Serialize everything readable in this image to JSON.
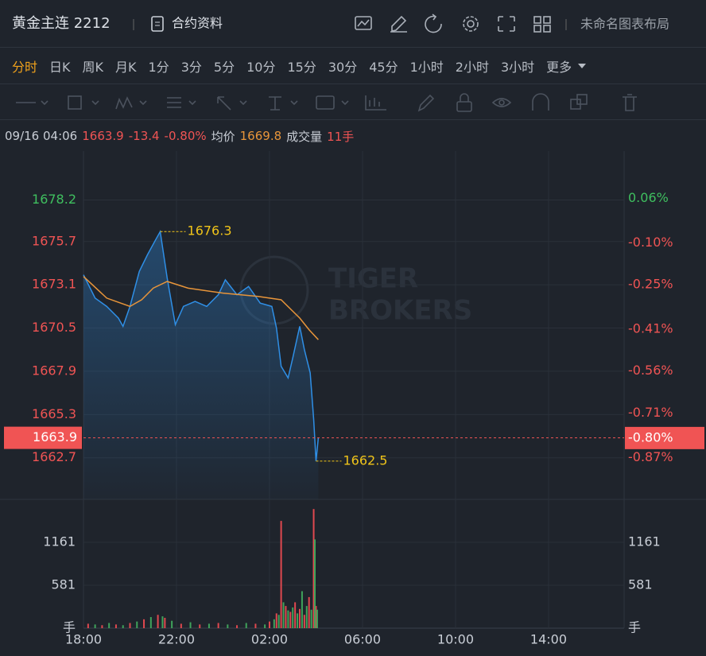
{
  "header": {
    "title": "黄金主连 2212",
    "contract_info": "合约资料",
    "layout_name": "未命名图表布局"
  },
  "periods": {
    "items": [
      "分时",
      "日K",
      "周K",
      "月K",
      "1分",
      "3分",
      "5分",
      "10分",
      "15分",
      "30分",
      "45分",
      "1小时",
      "2小时",
      "3小时",
      "更多"
    ],
    "active": 0
  },
  "info": {
    "time": "09/16 04:06",
    "price": "1663.9",
    "change": "-13.4",
    "change_pct": "-0.80%",
    "avg_label": "均价",
    "avg": "1669.8",
    "volume_label": "成交量",
    "volume": "11手"
  },
  "watermark": [
    "TIGER",
    "BROKERS"
  ],
  "chart_data": {
    "type": "line",
    "xlim": [
      0,
      23.25
    ],
    "xticks": [
      {
        "value": 0,
        "label": "18:00"
      },
      {
        "value": 4,
        "label": "22:00"
      },
      {
        "value": 8,
        "label": "02:00"
      },
      {
        "value": 12,
        "label": "06:00"
      },
      {
        "value": 16,
        "label": "10:00"
      },
      {
        "value": 20,
        "label": "14:00"
      }
    ],
    "ylim": [
      1660.2,
      1680.9
    ],
    "yticks": [
      1678.2,
      1675.7,
      1673.1,
      1670.5,
      1667.9,
      1665.3,
      1662.7
    ],
    "y2lim": [
      -1.02,
      0.215
    ],
    "y2ticks": [
      {
        "value": 0.06,
        "label": "0.06%"
      },
      {
        "value": -0.1,
        "label": "-0.10%"
      },
      {
        "value": -0.25,
        "label": "-0.25%"
      },
      {
        "value": -0.41,
        "label": "-0.41%"
      },
      {
        "value": -0.56,
        "label": "-0.56%"
      },
      {
        "value": -0.71,
        "label": "-0.71%"
      },
      {
        "value": -0.87,
        "label": "-0.87%"
      }
    ],
    "series": [
      {
        "color": "#2f8fe6",
        "x": [
          0,
          0.5,
          1.0,
          1.5,
          1.7,
          2.0,
          2.4,
          2.75,
          3.1,
          3.3,
          3.6,
          3.95,
          4.3,
          4.8,
          5.3,
          5.8,
          6.1,
          6.6,
          7.1,
          7.6,
          8.1,
          8.3,
          8.5,
          8.8,
          9.0,
          9.3,
          9.5,
          9.75,
          9.9,
          10.0,
          10.1
        ],
        "values": [
          1673.7,
          1672.3,
          1671.8,
          1671.1,
          1670.6,
          1671.8,
          1673.9,
          1674.9,
          1675.8,
          1676.3,
          1673.5,
          1670.7,
          1671.8,
          1672.1,
          1671.8,
          1672.5,
          1673.4,
          1672.5,
          1673.0,
          1672.0,
          1671.8,
          1670.5,
          1668.2,
          1667.5,
          1668.7,
          1670.6,
          1669.2,
          1667.8,
          1665.0,
          1662.5,
          1663.9
        ]
      },
      {
        "color": "#e8953a",
        "x": [
          0,
          1,
          2,
          2.5,
          3,
          3.6,
          4.5,
          6,
          7.5,
          8.5,
          9.3,
          9.7,
          10.1
        ],
        "values": [
          1673.6,
          1672.3,
          1671.8,
          1672.2,
          1672.9,
          1673.3,
          1672.9,
          1672.6,
          1672.4,
          1672.2,
          1671.1,
          1670.4,
          1669.8
        ]
      }
    ],
    "last_price": 1663.9,
    "last_pct": {
      "value": -0.8,
      "label": "-0.80%"
    },
    "annotations": [
      {
        "x": 3.3,
        "value": 1676.3
      },
      {
        "x": 10.0,
        "value": 1662.5
      }
    ],
    "volume": {
      "ylim": [
        0,
        1741
      ],
      "yticks": [
        1161,
        581,
        {
          "value": 0,
          "label": "手"
        }
      ],
      "series": [
        {
          "color": "#e0484f",
          "x": [
            0.2,
            0.8,
            1.4,
            2.0,
            2.6,
            3.2,
            3.5,
            4.2,
            5.0,
            5.8,
            6.6,
            7.4,
            8.0,
            8.3,
            8.5,
            8.7,
            8.9,
            9.1,
            9.3,
            9.5,
            9.7,
            9.9,
            10.0
          ],
          "values": [
            60,
            40,
            50,
            70,
            120,
            180,
            140,
            60,
            50,
            70,
            40,
            60,
            90,
            200,
            1450,
            300,
            220,
            350,
            260,
            180,
            420,
            1610,
            300
          ]
        },
        {
          "color": "#3fa35b",
          "x": [
            0.5,
            1.1,
            1.7,
            2.3,
            2.9,
            3.4,
            3.8,
            4.6,
            5.4,
            6.2,
            7.0,
            7.8,
            8.2,
            8.4,
            8.6,
            8.8,
            9.0,
            9.2,
            9.4,
            9.6,
            9.8,
            9.95,
            10.05
          ],
          "values": [
            50,
            70,
            40,
            90,
            150,
            160,
            100,
            80,
            60,
            50,
            70,
            50,
            120,
            180,
            350,
            240,
            280,
            200,
            500,
            300,
            250,
            1200,
            250
          ]
        }
      ]
    }
  }
}
